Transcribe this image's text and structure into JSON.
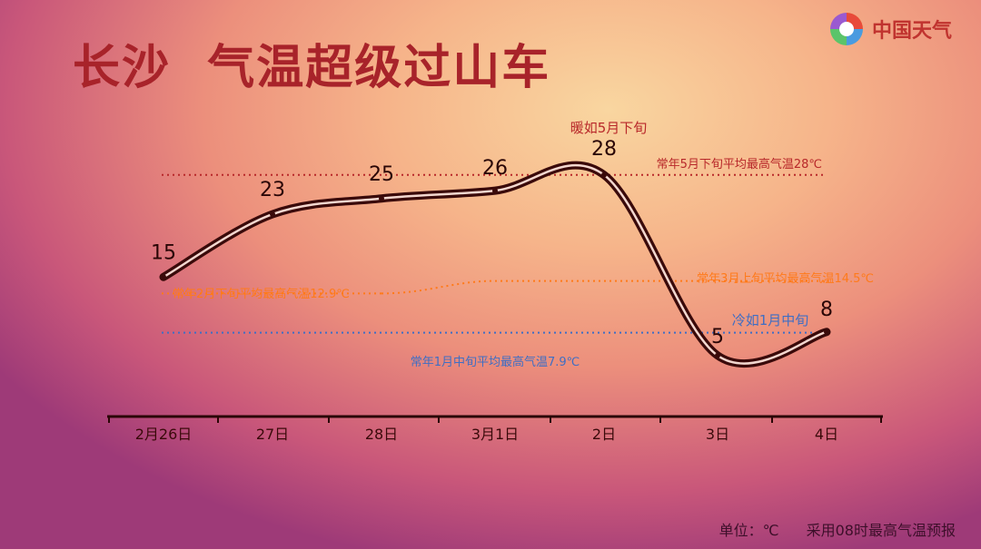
{
  "title": "长沙  气温超级过山车",
  "logo": {
    "text": "中国天气"
  },
  "footer": {
    "unit": "单位：℃",
    "note": "采用08时最高气温预报"
  },
  "colors": {
    "title": "#a8232a",
    "line": "#3a0a0a",
    "ref_high": "#b8282a",
    "ref_mid": "#ff7a1a",
    "ref_low": "#3f6ec4"
  },
  "chart_data": {
    "type": "line",
    "categories": [
      "2月26日",
      "27日",
      "28日",
      "3月1日",
      "2日",
      "3日",
      "4日"
    ],
    "values": [
      15,
      23,
      25,
      26,
      28,
      5,
      8
    ],
    "ylim": [
      0,
      35
    ],
    "reference_lines": [
      {
        "label": "常年5月下旬平均最高气温28℃",
        "value": 28,
        "color": "#b8282a"
      },
      {
        "label": "常年2月下旬平均最高气温12.9℃",
        "value": 12.9,
        "color": "#ff7a1a"
      },
      {
        "label": "常年3月上旬平均最高气温14.5℃",
        "value": 14.5,
        "color": "#ff7a1a"
      },
      {
        "label": "常年1月中旬平均最高气温7.9℃",
        "value": 7.9,
        "color": "#3f6ec4"
      }
    ],
    "annotations": [
      {
        "text": "暖如5月下旬",
        "category": "2日",
        "color": "#b8282a"
      },
      {
        "text": "冷如1月中旬",
        "category": "4日",
        "color": "#3f6ec4"
      }
    ]
  }
}
